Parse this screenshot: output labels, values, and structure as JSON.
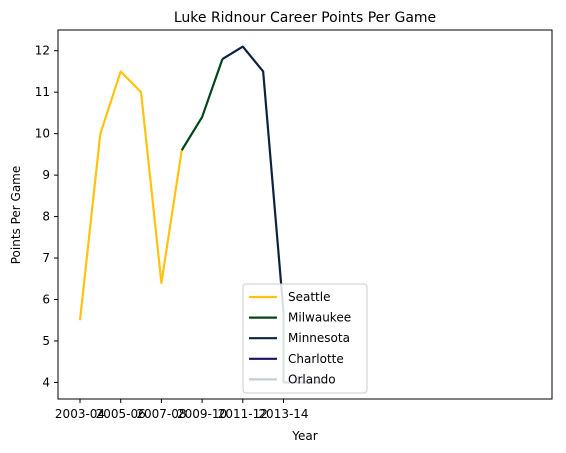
{
  "chart_data": {
    "type": "line",
    "title": "Luke Ridnour Career Points Per Game",
    "xlabel": "Year",
    "ylabel": "Points Per Game",
    "x_ticks": [
      "2003-04",
      "2005-06",
      "2007-08",
      "2009-10",
      "2011-12",
      "2013-14"
    ],
    "y_ticks": [
      "4",
      "5",
      "6",
      "7",
      "8",
      "9",
      "10",
      "11",
      "12"
    ],
    "ylim": [
      3.6,
      12.5
    ],
    "x_range": [
      "2003-04",
      "2015-16"
    ],
    "grid": false,
    "legend_position": "lower center",
    "series": [
      {
        "name": "Seattle",
        "color": "#FFC20E",
        "x": [
          "2003-04",
          "2004-05",
          "2005-06",
          "2006-07",
          "2007-08",
          "2008-09"
        ],
        "y": [
          5.5,
          10.0,
          11.5,
          11.0,
          6.4,
          9.6
        ]
      },
      {
        "name": "Milwaukee",
        "color": "#00471B",
        "x": [
          "2008-09",
          "2009-10",
          "2010-11",
          "2013-14",
          "2013-14"
        ],
        "y": [
          9.6,
          10.4,
          11.8,
          5.7,
          4.0
        ],
        "note_segments": [
          [
            0,
            2
          ],
          [
            3,
            4
          ]
        ]
      },
      {
        "name": "Minnesota",
        "color": "#0C2340",
        "x": [
          "2010-11",
          "2011-12",
          "2012-13",
          "2013-14"
        ],
        "y": [
          11.8,
          12.1,
          11.5,
          5.7
        ]
      },
      {
        "name": "Charlotte",
        "color": "#1D1160",
        "x": [
          "2013-14",
          "2014-15",
          "2015-16"
        ],
        "y": [
          4.0,
          4.0,
          4.0
        ]
      },
      {
        "name": "Orlando",
        "color": "#C4CED4",
        "x": [],
        "y": []
      }
    ]
  }
}
